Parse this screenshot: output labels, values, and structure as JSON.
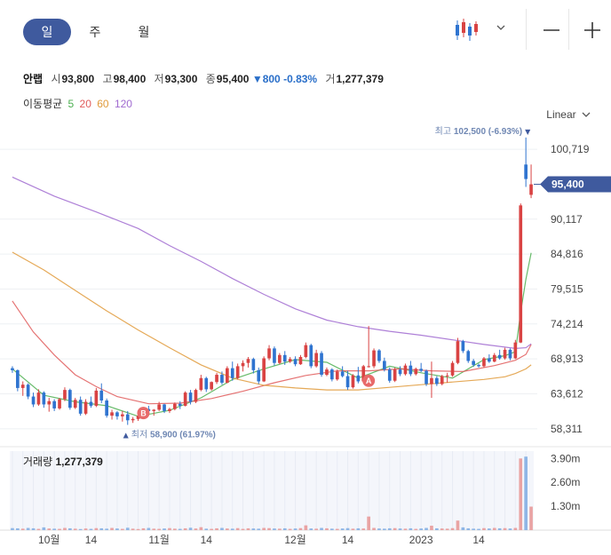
{
  "toolbar": {
    "tabs": [
      {
        "label": "일",
        "active": true
      },
      {
        "label": "주",
        "active": false
      },
      {
        "label": "월",
        "active": false
      }
    ],
    "chart_type_icon": "candlestick-icon",
    "dropdown_icon": "chevron-down-icon",
    "zoom_out_icon": "minus-icon",
    "zoom_in_icon": "plus-icon"
  },
  "quote": {
    "name": "안랩",
    "open_label": "시",
    "open": "93,800",
    "high_label": "고",
    "high": "98,400",
    "low_label": "저",
    "low": "93,300",
    "close_label": "종",
    "close": "95,400",
    "change_arrow": "▼",
    "change": "800",
    "change_pct": "-0.83%",
    "volume_label": "거",
    "volume": "1,277,379"
  },
  "moving_average": {
    "label": "이동평균",
    "periods": [
      {
        "label": "5",
        "color": "#4caf50"
      },
      {
        "label": "20",
        "color": "#e05a5a"
      },
      {
        "label": "60",
        "color": "#e09a3a"
      },
      {
        "label": "120",
        "color": "#a06ad0"
      }
    ]
  },
  "scale": {
    "label": "Linear",
    "icon": "chevron-down-icon"
  },
  "colors": {
    "up": "#d94343",
    "down": "#2f74d0",
    "accent": "#3f5a9e"
  },
  "chart_data": {
    "type": "candlestick",
    "price_ticks": [
      "100,719",
      "95,400",
      "90,117",
      "84,816",
      "79,515",
      "74,214",
      "68,913",
      "63,612",
      "58,311"
    ],
    "price_tick_values": [
      100719,
      90117,
      84816,
      79515,
      74214,
      68913,
      63612,
      58311
    ],
    "ylim": [
      56000,
      104500
    ],
    "current_price": {
      "label": "95,400",
      "value": 95400
    },
    "max_marker": {
      "label": "최고",
      "value_text": "102,500 (-6.93%)",
      "value": 102500,
      "arrow": "▼"
    },
    "min_marker": {
      "label": "최저",
      "value_text": "58,900 (61.97%)",
      "value": 58900,
      "arrow": "▲"
    },
    "badges": [
      {
        "label": "B",
        "index": 25,
        "value": 60700
      },
      {
        "label": "A",
        "index": 68,
        "value": 65600
      }
    ],
    "x_labels": [
      {
        "label": "10월",
        "index": 7
      },
      {
        "label": "14",
        "index": 15
      },
      {
        "label": "11월",
        "index": 28
      },
      {
        "label": "14",
        "index": 37
      },
      {
        "label": "12월",
        "index": 54
      },
      {
        "label": "14",
        "index": 64
      },
      {
        "label": "2023",
        "index": 78
      },
      {
        "label": "14",
        "index": 89
      }
    ],
    "candles": [
      [
        67500,
        67800,
        66800,
        67200
      ],
      [
        67200,
        67300,
        64000,
        64500
      ],
      [
        64500,
        65500,
        63300,
        65000
      ],
      [
        65000,
        65200,
        62800,
        63200
      ],
      [
        63200,
        63800,
        61600,
        62000
      ],
      [
        62000,
        64300,
        61800,
        63800
      ],
      [
        63800,
        64000,
        61500,
        62000
      ],
      [
        62000,
        63000,
        60900,
        62500
      ],
      [
        62500,
        62800,
        61000,
        61400
      ],
      [
        61400,
        63000,
        61200,
        62800
      ],
      [
        62800,
        64600,
        62500,
        64200
      ],
      [
        64200,
        64400,
        61200,
        61500
      ],
      [
        61500,
        63000,
        61300,
        62700
      ],
      [
        62700,
        63200,
        60300,
        60600
      ],
      [
        60600,
        62800,
        60400,
        62400
      ],
      [
        62400,
        63200,
        61500,
        61800
      ],
      [
        61800,
        64500,
        61600,
        64100
      ],
      [
        64100,
        65200,
        62200,
        62600
      ],
      [
        62600,
        62900,
        60000,
        60300
      ],
      [
        60300,
        61200,
        59700,
        60800
      ],
      [
        60800,
        61000,
        59700,
        60200
      ],
      [
        60200,
        61000,
        59400,
        60500
      ],
      [
        60500,
        61000,
        58900,
        59600
      ],
      [
        59600,
        60100,
        59200,
        59800
      ],
      [
        59800,
        60500,
        59500,
        60300
      ],
      [
        60300,
        61600,
        60200,
        61300
      ],
      [
        61300,
        61800,
        60600,
        61000
      ],
      [
        61000,
        61300,
        60300,
        61200
      ],
      [
        61200,
        62400,
        61000,
        62000
      ],
      [
        62000,
        62100,
        60700,
        61000
      ],
      [
        61000,
        61500,
        60700,
        61300
      ],
      [
        61300,
        62300,
        61100,
        62100
      ],
      [
        62100,
        62500,
        61300,
        61800
      ],
      [
        61800,
        64000,
        61700,
        63800
      ],
      [
        63800,
        64200,
        62000,
        62400
      ],
      [
        62400,
        64400,
        62200,
        64200
      ],
      [
        64200,
        66500,
        64000,
        66000
      ],
      [
        66000,
        66200,
        63900,
        64300
      ],
      [
        64300,
        65500,
        64100,
        65400
      ],
      [
        65400,
        66800,
        65100,
        66500
      ],
      [
        66500,
        67000,
        65000,
        65300
      ],
      [
        65300,
        67800,
        65200,
        67500
      ],
      [
        67500,
        68500,
        65600,
        66000
      ],
      [
        66000,
        68200,
        65800,
        67800
      ],
      [
        67800,
        68700,
        67000,
        68300
      ],
      [
        68300,
        69200,
        67600,
        68900
      ],
      [
        68900,
        69100,
        66700,
        67200
      ],
      [
        67200,
        67600,
        65100,
        65500
      ],
      [
        65500,
        69300,
        65400,
        69000
      ],
      [
        69000,
        71000,
        68700,
        70500
      ],
      [
        70500,
        70800,
        67900,
        68300
      ],
      [
        68300,
        69800,
        68100,
        69500
      ],
      [
        69500,
        70100,
        68000,
        68500
      ],
      [
        68500,
        69200,
        68300,
        68900
      ],
      [
        68900,
        69300,
        67800,
        68100
      ],
      [
        68100,
        69500,
        68000,
        69200
      ],
      [
        69200,
        71400,
        69000,
        71000
      ],
      [
        71000,
        71200,
        67500,
        67800
      ],
      [
        67800,
        70300,
        67600,
        69800
      ],
      [
        69800,
        70100,
        66200,
        66500
      ],
      [
        66500,
        67600,
        66300,
        67300
      ],
      [
        67300,
        67500,
        65500,
        65800
      ],
      [
        65800,
        67300,
        65600,
        67000
      ],
      [
        67000,
        67800,
        66100,
        66300
      ],
      [
        66300,
        67100,
        64200,
        64600
      ],
      [
        64600,
        66600,
        64400,
        66400
      ],
      [
        66400,
        67700,
        65200,
        65500
      ],
      [
        65500,
        68000,
        65300,
        67800
      ],
      [
        67800,
        73900,
        67600,
        67800
      ],
      [
        67800,
        70500,
        67500,
        70200
      ],
      [
        70200,
        70400,
        68300,
        68600
      ],
      [
        68600,
        69100,
        67000,
        67300
      ],
      [
        67300,
        67600,
        65300,
        65600
      ],
      [
        65600,
        67600,
        65400,
        67300
      ],
      [
        67300,
        67800,
        66300,
        66600
      ],
      [
        66600,
        68200,
        66400,
        67900
      ],
      [
        67900,
        68600,
        66300,
        66600
      ],
      [
        66600,
        67600,
        66400,
        67400
      ],
      [
        67400,
        68300,
        66900,
        67100
      ],
      [
        67100,
        67300,
        64800,
        65100
      ],
      [
        65100,
        68500,
        63000,
        66000
      ],
      [
        66000,
        66300,
        64800,
        65100
      ],
      [
        65100,
        66500,
        64900,
        66300
      ],
      [
        66300,
        66800,
        65300,
        66400
      ],
      [
        66400,
        68600,
        66200,
        68300
      ],
      [
        68300,
        72100,
        68100,
        71600
      ],
      [
        71600,
        71800,
        69800,
        70100
      ],
      [
        70100,
        70300,
        68300,
        68600
      ],
      [
        68600,
        68900,
        67700,
        68000
      ],
      [
        68000,
        68200,
        67600,
        67800
      ],
      [
        67800,
        69200,
        67600,
        69000
      ],
      [
        69000,
        69600,
        68300,
        68500
      ],
      [
        68500,
        69800,
        68400,
        69500
      ],
      [
        69500,
        70300,
        68800,
        69000
      ],
      [
        69000,
        70600,
        68800,
        70300
      ],
      [
        70300,
        70500,
        68700,
        69000
      ],
      [
        69000,
        71800,
        68900,
        71400
      ],
      [
        71400,
        92500,
        71300,
        92200
      ],
      [
        98400,
        102500,
        95000,
        96200
      ],
      [
        93800,
        98400,
        93300,
        95400
      ]
    ],
    "ma": {
      "5": [
        [
          0,
          67400
        ],
        [
          6,
          63400
        ],
        [
          12,
          62400
        ],
        [
          18,
          61800
        ],
        [
          24,
          60200
        ],
        [
          30,
          61100
        ],
        [
          36,
          63000
        ],
        [
          42,
          65800
        ],
        [
          48,
          67400
        ],
        [
          54,
          68800
        ],
        [
          60,
          68400
        ],
        [
          66,
          66000
        ],
        [
          72,
          67800
        ],
        [
          78,
          66800
        ],
        [
          84,
          66000
        ],
        [
          90,
          68800
        ],
        [
          94,
          69400
        ],
        [
          96,
          70000
        ],
        [
          97,
          76000
        ],
        [
          98,
          81000
        ],
        [
          99,
          85000
        ]
      ],
      "20": [
        [
          0,
          77700
        ],
        [
          4,
          73000
        ],
        [
          8,
          69500
        ],
        [
          12,
          66500
        ],
        [
          16,
          64700
        ],
        [
          20,
          63200
        ],
        [
          26,
          62100
        ],
        [
          32,
          62200
        ],
        [
          38,
          62900
        ],
        [
          44,
          64000
        ],
        [
          50,
          65300
        ],
        [
          56,
          66400
        ],
        [
          62,
          67100
        ],
        [
          68,
          67100
        ],
        [
          74,
          67400
        ],
        [
          80,
          67100
        ],
        [
          86,
          67000
        ],
        [
          92,
          67900
        ],
        [
          96,
          68700
        ],
        [
          98,
          69600
        ],
        [
          99,
          71100
        ]
      ],
      "60": [
        [
          0,
          85100
        ],
        [
          6,
          82400
        ],
        [
          12,
          79300
        ],
        [
          18,
          76200
        ],
        [
          24,
          73300
        ],
        [
          30,
          70600
        ],
        [
          36,
          68000
        ],
        [
          42,
          66000
        ],
        [
          48,
          64900
        ],
        [
          54,
          64500
        ],
        [
          60,
          64200
        ],
        [
          66,
          64200
        ],
        [
          72,
          64600
        ],
        [
          78,
          65000
        ],
        [
          84,
          65400
        ],
        [
          90,
          65800
        ],
        [
          94,
          66200
        ],
        [
          96,
          66700
        ],
        [
          98,
          67400
        ],
        [
          99,
          68000
        ]
      ],
      "120": [
        [
          0,
          96500
        ],
        [
          8,
          93600
        ],
        [
          16,
          91200
        ],
        [
          24,
          88700
        ],
        [
          30,
          86100
        ],
        [
          36,
          83700
        ],
        [
          42,
          81100
        ],
        [
          48,
          78700
        ],
        [
          54,
          76500
        ],
        [
          60,
          74800
        ],
        [
          66,
          73800
        ],
        [
          72,
          73100
        ],
        [
          78,
          72500
        ],
        [
          84,
          71800
        ],
        [
          90,
          71100
        ],
        [
          96,
          70500
        ],
        [
          98,
          70600
        ],
        [
          99,
          71200
        ]
      ]
    },
    "volume": {
      "label": "거래량",
      "value_text": "1,277,379",
      "ticks": [
        {
          "label": "3.90m",
          "value": 3.9
        },
        {
          "label": "2.60m",
          "value": 2.6
        },
        {
          "label": "1.30m",
          "value": 1.3
        }
      ],
      "ylim": [
        0,
        4.3
      ],
      "values": [
        0.11,
        0.1,
        0.08,
        0.12,
        0.1,
        0.07,
        0.15,
        0.09,
        0.08,
        0.07,
        0.12,
        0.1,
        0.08,
        0.06,
        0.09,
        0.07,
        0.11,
        0.1,
        0.08,
        0.12,
        0.09,
        0.07,
        0.13,
        0.08,
        0.06,
        0.1,
        0.12,
        0.08,
        0.07,
        0.09,
        0.11,
        0.08,
        0.07,
        0.1,
        0.13,
        0.09,
        0.16,
        0.08,
        0.07,
        0.1,
        0.12,
        0.09,
        0.08,
        0.11,
        0.07,
        0.1,
        0.09,
        0.08,
        0.12,
        0.11,
        0.09,
        0.08,
        0.1,
        0.07,
        0.09,
        0.11,
        0.26,
        0.09,
        0.08,
        0.12,
        0.1,
        0.08,
        0.07,
        0.09,
        0.11,
        0.08,
        0.1,
        0.09,
        0.74,
        0.12,
        0.09,
        0.08,
        0.1,
        0.11,
        0.09,
        0.08,
        0.1,
        0.07,
        0.09,
        0.12,
        0.24,
        0.1,
        0.09,
        0.08,
        0.11,
        0.52,
        0.15,
        0.1,
        0.08,
        0.07,
        0.11,
        0.09,
        0.12,
        0.1,
        0.11,
        0.09,
        0.12,
        3.9,
        4.0,
        1.28
      ]
    }
  }
}
